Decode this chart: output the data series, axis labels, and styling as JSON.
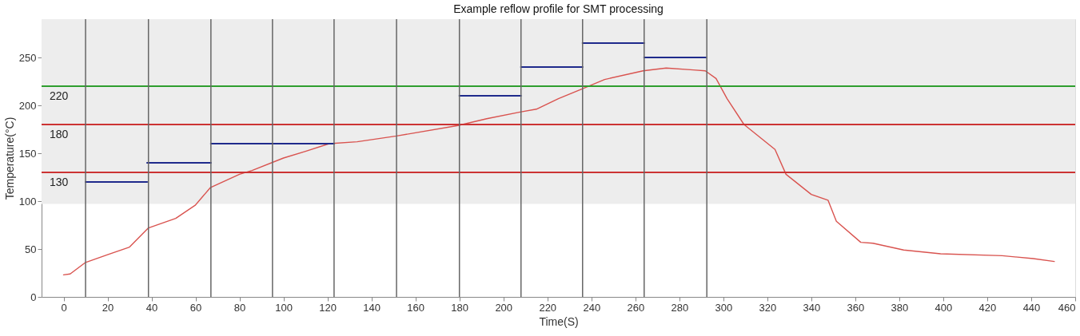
{
  "chart_data": {
    "type": "line",
    "title": "Example reflow profile for SMT processing",
    "xlabel": "Time(S)",
    "ylabel": "Temperature(°C)",
    "xlim": [
      -10,
      460
    ],
    "xticks": [
      0,
      20,
      40,
      60,
      80,
      100,
      120,
      140,
      160,
      180,
      200,
      220,
      240,
      260,
      280,
      300,
      320,
      340,
      360,
      380,
      400,
      420,
      440,
      460
    ],
    "ylim": [
      0,
      290
    ],
    "yticks": [
      0,
      50,
      100,
      150,
      200,
      250
    ],
    "grid": false,
    "series": [
      {
        "color": "#d9534f",
        "x": [
          0,
          3,
          10,
          20,
          30,
          38.6,
          51,
          60,
          66.7,
          80,
          85.7,
          100,
          110,
          120.8,
          133.5,
          151.4,
          179.4,
          192.4,
          207.6,
          215,
          225,
          235.6,
          246,
          263.5,
          274,
          286.4,
          291.8,
          296.7,
          301.7,
          309.4,
          323.5,
          328.5,
          340,
          347.6,
          351.4,
          362.5,
          368,
          382,
          398.8,
          426.8,
          440.9,
          450.5
        ],
        "values": [
          23,
          24,
          36,
          44,
          52,
          72,
          82,
          96,
          114,
          128,
          132,
          145,
          152,
          160,
          162,
          168,
          179,
          186,
          193,
          196,
          207,
          217,
          227,
          236,
          239,
          237,
          236,
          228,
          207,
          180,
          154,
          128,
          107,
          101,
          79,
          57,
          56,
          49,
          45,
          43,
          40,
          37
        ]
      },
      {
        "color": "#1f2a8c",
        "x": [
          10,
          38
        ],
        "values": [
          120,
          120
        ]
      },
      {
        "color": "#1f2a8c",
        "x": [
          38,
          67
        ],
        "values": [
          140,
          140
        ]
      },
      {
        "color": "#1f2a8c",
        "x": [
          67,
          123
        ],
        "values": [
          160,
          160
        ]
      },
      {
        "color": "#1f2a8c",
        "x": [
          180,
          208
        ],
        "values": [
          210,
          210
        ]
      },
      {
        "color": "#1f2a8c",
        "x": [
          208,
          236
        ],
        "values": [
          240,
          240
        ]
      },
      {
        "color": "#1f2a8c",
        "x": [
          236,
          264
        ],
        "values": [
          265,
          265
        ]
      },
      {
        "color": "#1f2a8c",
        "x": [
          264,
          292
        ],
        "values": [
          250,
          250
        ]
      }
    ],
    "ref_lines": [
      {
        "axis": "y",
        "value": 220,
        "label": "220",
        "color": "#2e9e2e"
      },
      {
        "axis": "y",
        "value": 180,
        "label": "180",
        "color": "#cc3333"
      },
      {
        "axis": "y",
        "value": 130,
        "label": "130",
        "color": "#cc3333"
      },
      {
        "axis": "x",
        "value": 10,
        "color": "#666666"
      },
      {
        "axis": "x",
        "value": 38.6,
        "color": "#666666"
      },
      {
        "axis": "x",
        "value": 67,
        "color": "#666666"
      },
      {
        "axis": "x",
        "value": 95,
        "color": "#666666"
      },
      {
        "axis": "x",
        "value": 123,
        "color": "#666666"
      },
      {
        "axis": "x",
        "value": 151.4,
        "color": "#666666"
      },
      {
        "axis": "x",
        "value": 180,
        "color": "#666666"
      },
      {
        "axis": "x",
        "value": 208,
        "color": "#666666"
      },
      {
        "axis": "x",
        "value": 236,
        "color": "#666666"
      },
      {
        "axis": "x",
        "value": 264,
        "color": "#666666"
      },
      {
        "axis": "x",
        "value": 292.5,
        "color": "#666666"
      }
    ],
    "bands": [
      {
        "axis": "y",
        "from": 97,
        "to": 290,
        "color": "#ededed"
      }
    ]
  }
}
